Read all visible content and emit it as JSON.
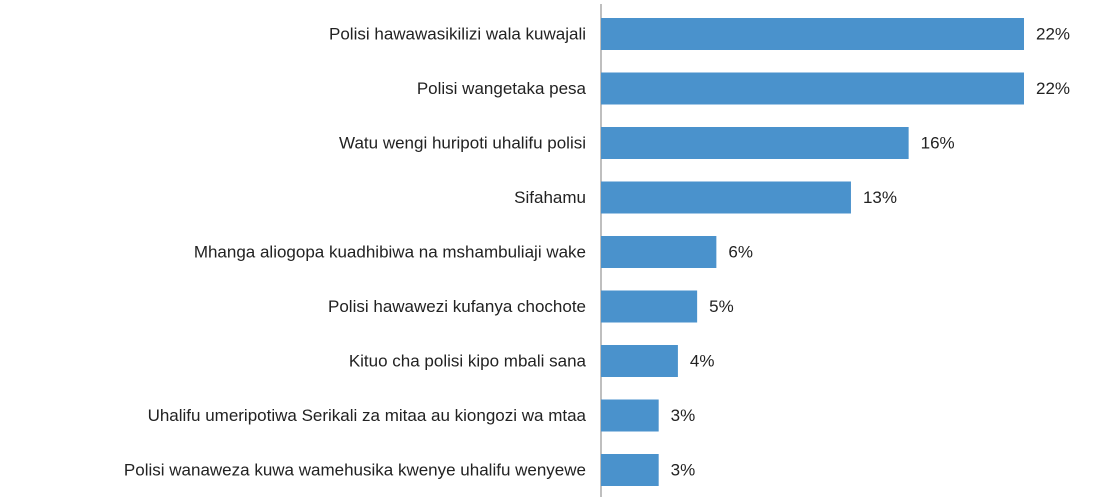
{
  "chart_data": {
    "type": "barh",
    "categories": [
      "Polisi hawawasikilizi wala kuwajali",
      "Polisi wangetaka pesa",
      "Watu wengi huripoti uhalifu polisi",
      "Sifahamu",
      "Mhanga aliogopa kuadhibiwa na mshambuliaji wake",
      "Polisi hawawezi kufanya chochote",
      "Kituo cha polisi kipo mbali sana",
      "Uhalifu umeripotiwa Serikali za mitaa au kiongozi wa mtaa",
      "Polisi wanaweza kuwa wamehusika kwenye uhalifu wenyewe"
    ],
    "values": [
      22,
      22,
      16,
      13,
      6,
      5,
      4,
      3,
      3
    ],
    "value_labels": [
      "22%",
      "22%",
      "16%",
      "13%",
      "6%",
      "5%",
      "4%",
      "3%",
      "3%"
    ],
    "color": "#4a92cc"
  }
}
